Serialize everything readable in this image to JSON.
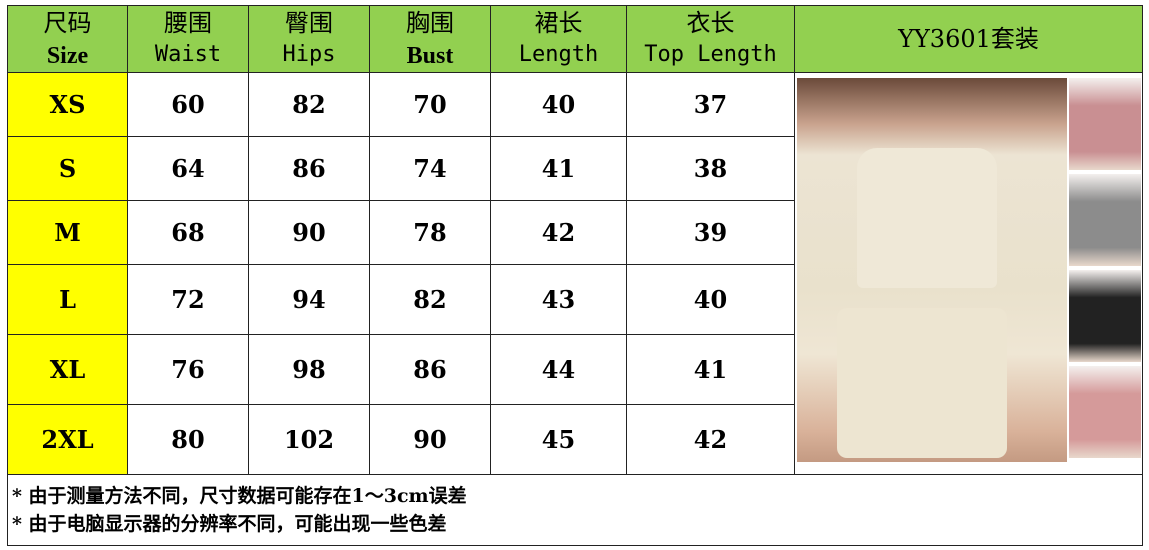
{
  "header": {
    "size": {
      "cn": "尺码",
      "en": "Size"
    },
    "waist": {
      "cn": "腰围",
      "en": "Waist"
    },
    "hips": {
      "cn": "臀围",
      "en": "Hips"
    },
    "bust": {
      "cn": "胸围",
      "en": "Bust"
    },
    "length": {
      "cn": "裙长",
      "en": "Length"
    },
    "top_length": {
      "cn": "衣长",
      "en": "Top Length"
    },
    "product": "YY3601套装"
  },
  "rows": [
    {
      "size": "XS",
      "waist": "60",
      "hips": "82",
      "bust": "70",
      "length": "40",
      "top_length": "37"
    },
    {
      "size": "S",
      "waist": "64",
      "hips": "86",
      "bust": "74",
      "length": "41",
      "top_length": "38"
    },
    {
      "size": "M",
      "waist": "68",
      "hips": "90",
      "bust": "78",
      "length": "42",
      "top_length": "39"
    },
    {
      "size": "L",
      "waist": "72",
      "hips": "94",
      "bust": "82",
      "length": "43",
      "top_length": "40"
    },
    {
      "size": "XL",
      "waist": "76",
      "hips": "98",
      "bust": "86",
      "length": "44",
      "top_length": "41"
    },
    {
      "size": "2XL",
      "waist": "80",
      "hips": "102",
      "bust": "90",
      "length": "45",
      "top_length": "42"
    }
  ],
  "notes": [
    "* 由于测量方法不同，尺寸数据可能存在1～3cm误差",
    "* 由于电脑显示器的分辨率不同，可能出现一些色差"
  ],
  "colors": {
    "header": "#92d050",
    "size_col": "#ffff00"
  },
  "thumb_colors": [
    "#c98f92",
    "#8c8c8c",
    "#222222",
    "#d59a9a"
  ]
}
